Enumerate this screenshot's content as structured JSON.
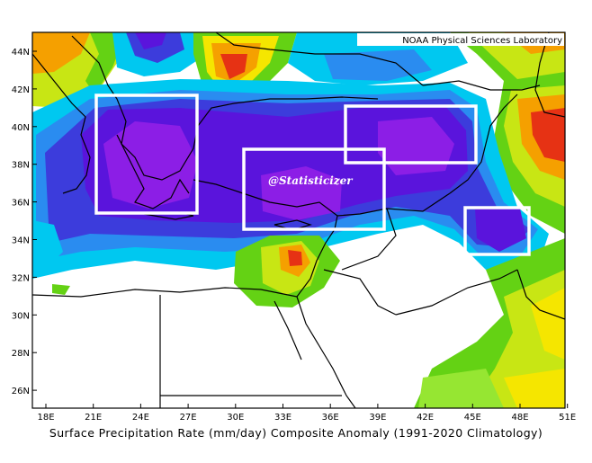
{
  "map": {
    "credit": "NOAA Physical Sciences Laboratory",
    "watermark": "@Statisticizer",
    "caption": "Surface Precipitation Rate (mm/day) Composite Anomaly (1991-2020 Climatology)",
    "lat_labels": [
      "44N",
      "42N",
      "40N",
      "38N",
      "36N",
      "34N",
      "32N",
      "30N",
      "28N",
      "26N"
    ],
    "lon_labels": [
      "18E",
      "21E",
      "24E",
      "27E",
      "30E",
      "33E",
      "36E",
      "39E",
      "42E",
      "45E",
      "48E",
      "51E"
    ],
    "colors": {
      "white": "#ffffff",
      "cyan": "#00c8f0",
      "blue": "#2a8cf0",
      "indigo": "#3c3cdc",
      "violet": "#5a14dc",
      "purple": "#8c1ee6",
      "lime": "#64d214",
      "green": "#96e632",
      "yellow_green": "#c8e614",
      "yellow": "#f5e600",
      "orange": "#f5a000",
      "red": "#e63214"
    }
  }
}
